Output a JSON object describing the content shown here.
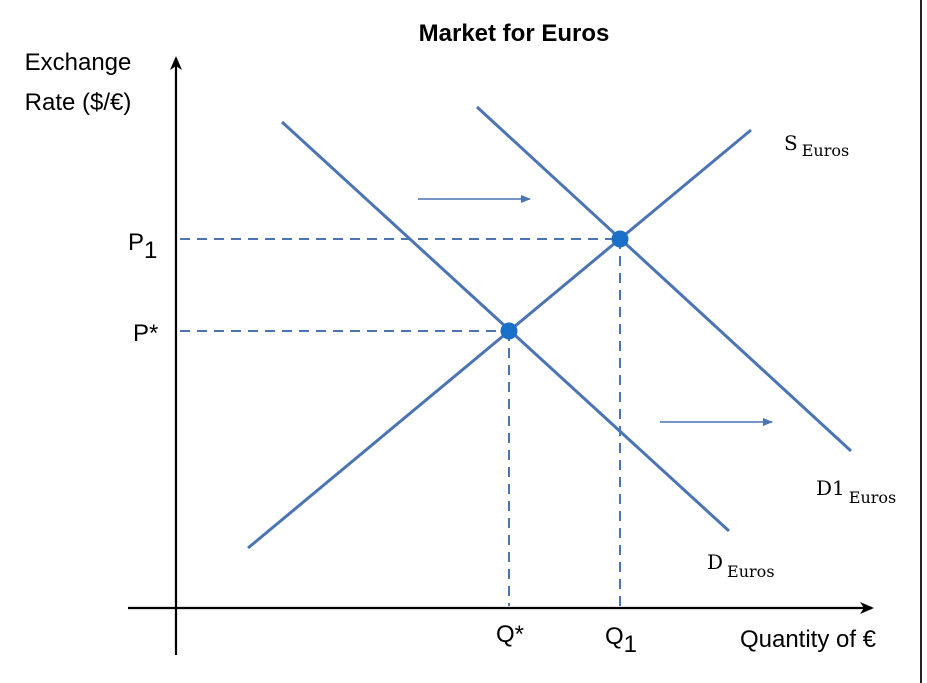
{
  "title": "Market for Euros",
  "y_axis": {
    "line1": "Exchange",
    "line2": "Rate ($/€)"
  },
  "x_axis": {
    "label": "Quantity of €"
  },
  "ticks": {
    "p1_main": "P",
    "p1_sub": "1",
    "pstar": "P*",
    "qstar": "Q*",
    "q1_main": "Q",
    "q1_sub": "1"
  },
  "curves": {
    "supply": {
      "main": "S",
      "sub": "Euros"
    },
    "demand": {
      "main": "D",
      "sub": "Euros"
    },
    "demand_new": {
      "main": "D1",
      "sub": "Euros"
    }
  },
  "colors": {
    "curve": "#4a74b4",
    "point": "#1a6fc9",
    "axis": "#000000"
  }
}
